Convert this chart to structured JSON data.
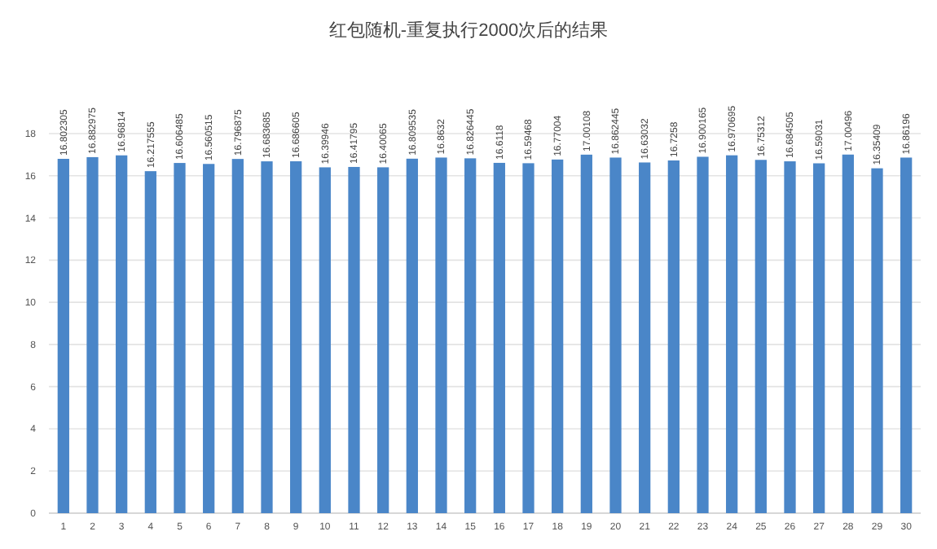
{
  "chart_data": {
    "type": "bar",
    "title": "红包随机-重复执行2000次后的结果",
    "categories": [
      "1",
      "2",
      "3",
      "4",
      "5",
      "6",
      "7",
      "8",
      "9",
      "10",
      "11",
      "12",
      "13",
      "14",
      "15",
      "16",
      "17",
      "18",
      "19",
      "20",
      "21",
      "22",
      "23",
      "24",
      "25",
      "26",
      "27",
      "28",
      "29",
      "30"
    ],
    "values": [
      16.802305,
      16.882975,
      16.96814,
      16.217555,
      16.606485,
      16.560515,
      16.796875,
      16.683685,
      16.686605,
      16.39946,
      16.41795,
      16.40065,
      16.809535,
      16.8632,
      16.826445,
      16.6118,
      16.59468,
      16.77004,
      17.00108,
      16.862445,
      16.63032,
      16.7258,
      16.900165,
      16.970695,
      16.75312,
      16.684505,
      16.59031,
      17.00496,
      16.35409,
      16.86196
    ],
    "color": "#4a86c8",
    "ylim": [
      0,
      18
    ],
    "yticks": [
      0,
      2,
      4,
      6,
      8,
      10,
      12,
      14,
      16,
      18
    ],
    "grid": "y",
    "data_labels": true
  }
}
